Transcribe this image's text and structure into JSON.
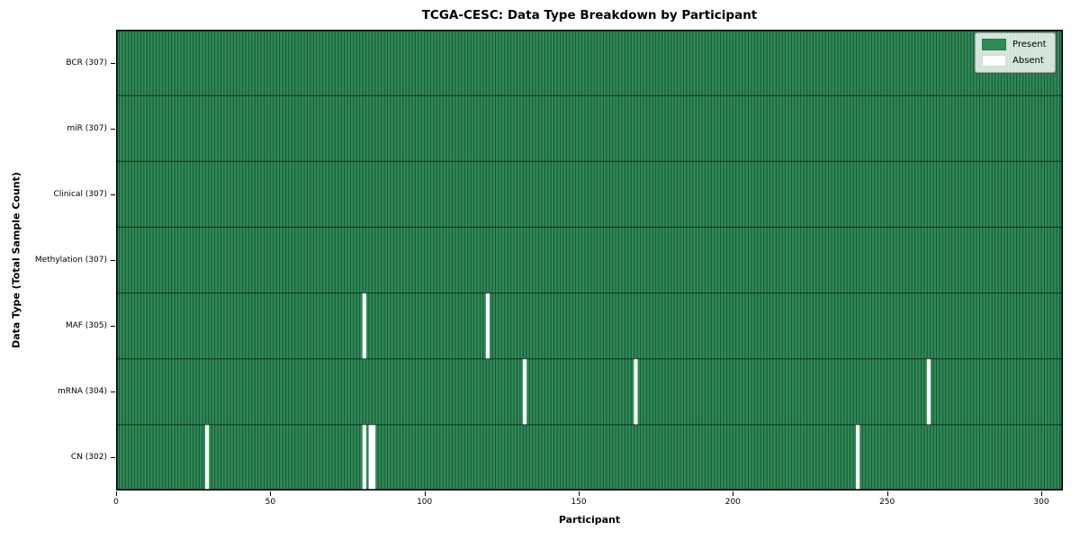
{
  "chart_data": {
    "type": "heatmap",
    "title": "TCGA-CESC: Data Type Breakdown by Participant",
    "xlabel": "Participant",
    "ylabel": "Data Type (Total Sample Count)",
    "n_participants": 307,
    "n_rows": 7,
    "x_ticks": [
      0,
      50,
      100,
      150,
      200,
      250,
      300
    ],
    "xlim": [
      0,
      307
    ],
    "grid": false,
    "legend_position": "upper right",
    "rows": [
      {
        "label": "BCR (307)",
        "data_type": "BCR",
        "total": 307,
        "absent_participants": []
      },
      {
        "label": "miR (307)",
        "data_type": "miR",
        "total": 307,
        "absent_participants": []
      },
      {
        "label": "Clinical (307)",
        "data_type": "Clinical",
        "total": 307,
        "absent_participants": []
      },
      {
        "label": "Methylation (307)",
        "data_type": "Methylation",
        "total": 307,
        "absent_participants": []
      },
      {
        "label": "MAF (305)",
        "data_type": "MAF",
        "total": 305,
        "absent_participants": [
          80,
          120
        ]
      },
      {
        "label": "mRNA (304)",
        "data_type": "mRNA",
        "total": 304,
        "absent_participants": [
          132,
          168,
          263
        ]
      },
      {
        "label": "CN (302)",
        "data_type": "CN",
        "total": 302,
        "absent_participants": [
          29,
          80,
          82,
          83,
          240
        ]
      }
    ],
    "legend": [
      {
        "label": "Present",
        "color": "#2e8b57"
      },
      {
        "label": "Absent",
        "color": "#ffffff"
      }
    ],
    "colors": {
      "present": "#2e8b57",
      "absent": "#ffffff",
      "cell_edge": "rgba(0,0,0,0.45)",
      "row_divider": "rgba(0,0,0,0.55)",
      "spine": "#000000"
    }
  }
}
